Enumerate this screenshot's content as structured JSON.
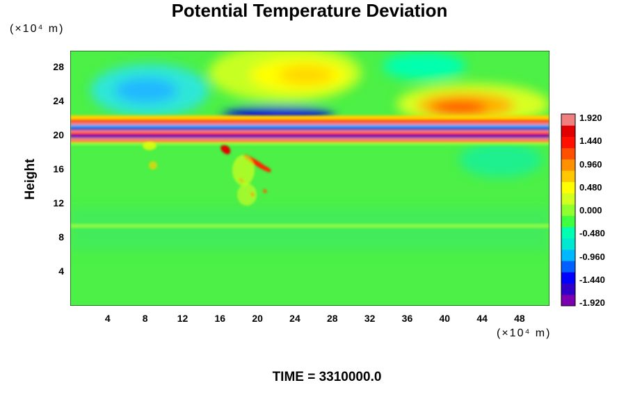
{
  "chart_data": {
    "type": "heatmap",
    "title": "Potential Temperature Deviation",
    "xlabel": "",
    "x_unit_label": "(×10⁴ m)",
    "ylabel": "Height",
    "y_unit_label": "(×10⁴ m)",
    "x_ticks": [
      "4",
      "8",
      "12",
      "16",
      "20",
      "24",
      "28",
      "32",
      "36",
      "40",
      "44",
      "48"
    ],
    "y_ticks": [
      "4",
      "8",
      "12",
      "16",
      "20",
      "24",
      "28"
    ],
    "xlim": [
      0,
      51.2
    ],
    "ylim": [
      0,
      30
    ],
    "colorbar": {
      "ticks": [
        "1.920",
        "1.440",
        "0.960",
        "0.480",
        "0.000",
        "-0.480",
        "-0.960",
        "-1.440",
        "-1.920"
      ],
      "range": [
        -1.92,
        1.92
      ],
      "colors": [
        "#7a00b0",
        "#3000c8",
        "#0000ff",
        "#0060ff",
        "#00b8ff",
        "#00e8d0",
        "#00ffb0",
        "#40ff40",
        "#90ff30",
        "#d0ff20",
        "#ffff00",
        "#ffc800",
        "#ff9000",
        "#ff5000",
        "#ff1000",
        "#e00000",
        "#f08080"
      ]
    },
    "features": [
      {
        "kind": "cold-anomaly",
        "x": 8,
        "y": 25,
        "value": -0.9
      },
      {
        "kind": "warm-anomaly",
        "x": 26,
        "y": 27,
        "value": 1.0
      },
      {
        "kind": "cold-anomaly",
        "x": 22,
        "y": 22,
        "value": -1.7
      },
      {
        "kind": "warm-anomaly",
        "x": 42,
        "y": 23,
        "value": 1.4
      },
      {
        "kind": "oscillating-band",
        "y_min": 19.5,
        "y_max": 22.5
      },
      {
        "kind": "warm-plume",
        "x": 20,
        "y_min": 12,
        "y_max": 19,
        "value": 1.5
      },
      {
        "kind": "weak-band",
        "y": 9.3,
        "value": -0.3
      }
    ],
    "footer": "TIME = 3310000.0"
  }
}
